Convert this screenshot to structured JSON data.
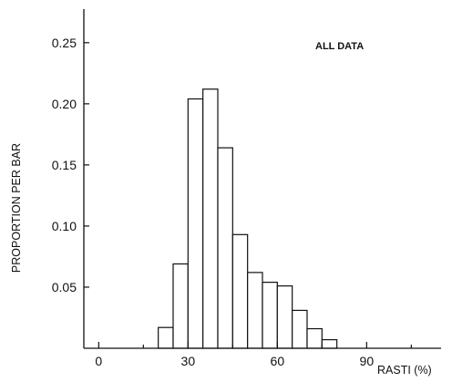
{
  "chart_data": {
    "type": "bar",
    "annotation": "ALL DATA",
    "xlabel": "RASTI (%)",
    "ylabel": "PROPORTION PER BAR",
    "xlim": [
      -5,
      115
    ],
    "ylim": [
      0,
      0.27
    ],
    "bin_width": 5,
    "x_ticks": [
      0,
      30,
      60,
      90
    ],
    "x_tick_labels": [
      "0",
      "30",
      "60",
      "90"
    ],
    "y_ticks": [
      0.05,
      0.1,
      0.15,
      0.2,
      0.25
    ],
    "y_tick_labels": [
      "0.05",
      "0.10",
      "0.15",
      "0.20",
      "0.25"
    ],
    "grid": false,
    "bins": [
      {
        "x0": 20,
        "x1": 25,
        "value": 0.017
      },
      {
        "x0": 25,
        "x1": 30,
        "value": 0.069
      },
      {
        "x0": 30,
        "x1": 35,
        "value": 0.204
      },
      {
        "x0": 35,
        "x1": 40,
        "value": 0.212
      },
      {
        "x0": 40,
        "x1": 45,
        "value": 0.164
      },
      {
        "x0": 45,
        "x1": 50,
        "value": 0.093
      },
      {
        "x0": 50,
        "x1": 55,
        "value": 0.062
      },
      {
        "x0": 55,
        "x1": 60,
        "value": 0.054
      },
      {
        "x0": 60,
        "x1": 65,
        "value": 0.051
      },
      {
        "x0": 65,
        "x1": 70,
        "value": 0.031
      },
      {
        "x0": 70,
        "x1": 75,
        "value": 0.016
      },
      {
        "x0": 75,
        "x1": 80,
        "value": 0.007
      }
    ]
  }
}
